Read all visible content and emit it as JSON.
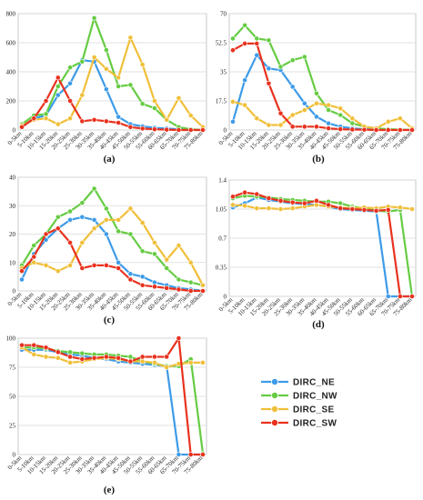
{
  "legend": [
    {
      "name": "DIRC_NE",
      "color": "#3d9be8"
    },
    {
      "name": "DIRC_NW",
      "color": "#66cc44"
    },
    {
      "name": "DIRC_SE",
      "color": "#f0bf3a"
    },
    {
      "name": "DIRC_SW",
      "color": "#e8321e"
    }
  ],
  "chart_data": [
    {
      "type": "line",
      "panel_label": "(a)",
      "categories": [
        "0-5km",
        "5-10km",
        "10-15km",
        "15-20km",
        "20-25km",
        "25-30km",
        "30-35km",
        "35-40km",
        "40-45km",
        "45-50km",
        "50-55km",
        "55-60km",
        "60-65km",
        "65-70km",
        "70-75km",
        "75-80km"
      ],
      "ylim": [
        0,
        800
      ],
      "yticks": [
        0,
        200,
        400,
        600,
        800
      ],
      "grid": true,
      "series": [
        {
          "name": "DIRC_NE",
          "values": [
            20,
            80,
            100,
            240,
            320,
            480,
            470,
            280,
            90,
            40,
            25,
            15,
            10,
            5,
            2,
            0
          ]
        },
        {
          "name": "DIRC_NW",
          "values": [
            40,
            100,
            110,
            300,
            430,
            470,
            770,
            550,
            300,
            310,
            180,
            150,
            70,
            20,
            5,
            0
          ]
        },
        {
          "name": "DIRC_SE",
          "values": [
            30,
            70,
            80,
            40,
            80,
            240,
            500,
            420,
            360,
            635,
            450,
            200,
            70,
            220,
            100,
            20
          ]
        },
        {
          "name": "DIRC_SW",
          "values": [
            20,
            80,
            200,
            360,
            200,
            60,
            70,
            60,
            50,
            20,
            10,
            5,
            2,
            0,
            0,
            0
          ]
        }
      ]
    },
    {
      "type": "line",
      "panel_label": "(b)",
      "categories": [
        "0-5km",
        "5-10km",
        "10-15km",
        "15-20km",
        "20-25km",
        "25-30km",
        "30-35km",
        "35-40km",
        "40-45km",
        "45-50km",
        "50-55km",
        "55-60km",
        "60-65km",
        "65-70km",
        "70-75km",
        "75-80km"
      ],
      "ylim": [
        0,
        70
      ],
      "yticks": [
        "0",
        "17.5",
        "35",
        "52.5",
        "70"
      ],
      "grid": true,
      "series": [
        {
          "name": "DIRC_NE",
          "values": [
            5,
            30,
            45,
            37,
            36,
            26,
            16,
            8,
            4,
            2,
            1,
            0.5,
            0.3,
            0.2,
            0.1,
            0
          ]
        },
        {
          "name": "DIRC_NW",
          "values": [
            55,
            63,
            55,
            54,
            38,
            42,
            44,
            22,
            12,
            9,
            4,
            2,
            1,
            0.5,
            0.2,
            0
          ]
        },
        {
          "name": "DIRC_SE",
          "values": [
            17,
            15,
            7,
            3,
            3,
            9,
            12,
            16,
            15,
            13,
            7,
            2,
            1,
            5,
            7,
            1
          ]
        },
        {
          "name": "DIRC_SW",
          "values": [
            48,
            52,
            52,
            28,
            10,
            2,
            2,
            2,
            1,
            0.5,
            0.3,
            0.2,
            0,
            0,
            0,
            0
          ]
        }
      ]
    },
    {
      "type": "line",
      "panel_label": "(c)",
      "categories": [
        "0-5km",
        "5-10km",
        "10-15km",
        "15-20km",
        "20-25km",
        "25-30km",
        "30-35km",
        "35-40km",
        "40-45km",
        "45-50km",
        "50-55km",
        "55-60km",
        "60-65km",
        "65-70km",
        "70-75km",
        "75-80km"
      ],
      "ylim": [
        0,
        40
      ],
      "yticks": [
        0,
        10,
        20,
        30,
        40
      ],
      "grid": true,
      "series": [
        {
          "name": "DIRC_NE",
          "values": [
            4,
            13,
            18,
            22,
            25,
            26,
            25,
            20,
            10,
            6,
            5,
            3,
            2,
            1,
            0.5,
            0
          ]
        },
        {
          "name": "DIRC_NW",
          "values": [
            9,
            16,
            20,
            26,
            28,
            31,
            36,
            29,
            21,
            20,
            14,
            13,
            8,
            4,
            3,
            2
          ]
        },
        {
          "name": "DIRC_SE",
          "values": [
            8,
            10,
            9,
            7,
            9,
            17,
            22,
            25,
            25,
            29,
            24,
            17,
            11,
            16,
            10,
            2
          ]
        },
        {
          "name": "DIRC_SW",
          "values": [
            7,
            12,
            20,
            22,
            17,
            8,
            9,
            9,
            8,
            4,
            2,
            1.5,
            1,
            0.5,
            0,
            0
          ]
        }
      ]
    },
    {
      "type": "line",
      "panel_label": "(d)",
      "categories": [
        "0-5km",
        "5-10km",
        "10-15km",
        "15-20km",
        "20-25km",
        "25-30km",
        "30-35km",
        "35-40km",
        "40-45km",
        "45-50km",
        "50-55km",
        "55-60km",
        "60-65km",
        "65-70km",
        "70-75km",
        "75-80km"
      ],
      "ylim": [
        0,
        1.4
      ],
      "yticks": [
        "0",
        "0.35",
        "0.7",
        "1.05",
        "1.4"
      ],
      "grid": true,
      "series": [
        {
          "name": "DIRC_NE",
          "values": [
            1.07,
            1.12,
            1.19,
            1.16,
            1.14,
            1.12,
            1.11,
            1.1,
            1.08,
            1.05,
            1.04,
            1.03,
            1.02,
            0,
            0,
            0
          ]
        },
        {
          "name": "DIRC_NW",
          "values": [
            1.18,
            1.21,
            1.2,
            1.19,
            1.17,
            1.16,
            1.15,
            1.14,
            1.14,
            1.12,
            1.08,
            1.06,
            1.03,
            1.02,
            1.04,
            0
          ]
        },
        {
          "name": "DIRC_SE",
          "values": [
            1.1,
            1.09,
            1.06,
            1.06,
            1.05,
            1.06,
            1.08,
            1.1,
            1.08,
            1.07,
            1.06,
            1.07,
            1.06,
            1.08,
            1.07,
            1.05
          ]
        },
        {
          "name": "DIRC_SW",
          "values": [
            1.2,
            1.25,
            1.23,
            1.18,
            1.15,
            1.13,
            1.12,
            1.15,
            1.1,
            1.06,
            1.05,
            1.04,
            1.03,
            1.04,
            0,
            0
          ]
        }
      ]
    },
    {
      "type": "line",
      "panel_label": "(e)",
      "categories": [
        "0-5km",
        "5-10km",
        "10-15km",
        "15-20km",
        "20-25km",
        "25-30km",
        "30-35km",
        "35-40km",
        "40-45km",
        "45-50km",
        "50-55km",
        "55-60km",
        "60-65km",
        "65-70km",
        "70-75km",
        "75-80km"
      ],
      "ylim": [
        0,
        100
      ],
      "yticks": [
        0,
        25,
        50,
        75,
        100
      ],
      "grid": true,
      "series": [
        {
          "name": "DIRC_NE",
          "values": [
            90,
            90,
            90,
            88,
            86,
            85,
            83,
            82,
            80,
            79,
            78,
            77,
            76,
            0,
            0,
            0
          ]
        },
        {
          "name": "DIRC_NW",
          "values": [
            92,
            92,
            91,
            89,
            88,
            87,
            86,
            86,
            85,
            84,
            80,
            78,
            76,
            76,
            82,
            1
          ]
        },
        {
          "name": "DIRC_SE",
          "values": [
            92,
            86,
            84,
            83,
            79,
            80,
            82,
            83,
            82,
            80,
            80,
            79,
            75,
            78,
            79,
            79
          ]
        },
        {
          "name": "DIRC_SW",
          "values": [
            94,
            94,
            92,
            88,
            84,
            82,
            83,
            84,
            83,
            80,
            84,
            84,
            84,
            100,
            0,
            0
          ]
        }
      ]
    }
  ]
}
